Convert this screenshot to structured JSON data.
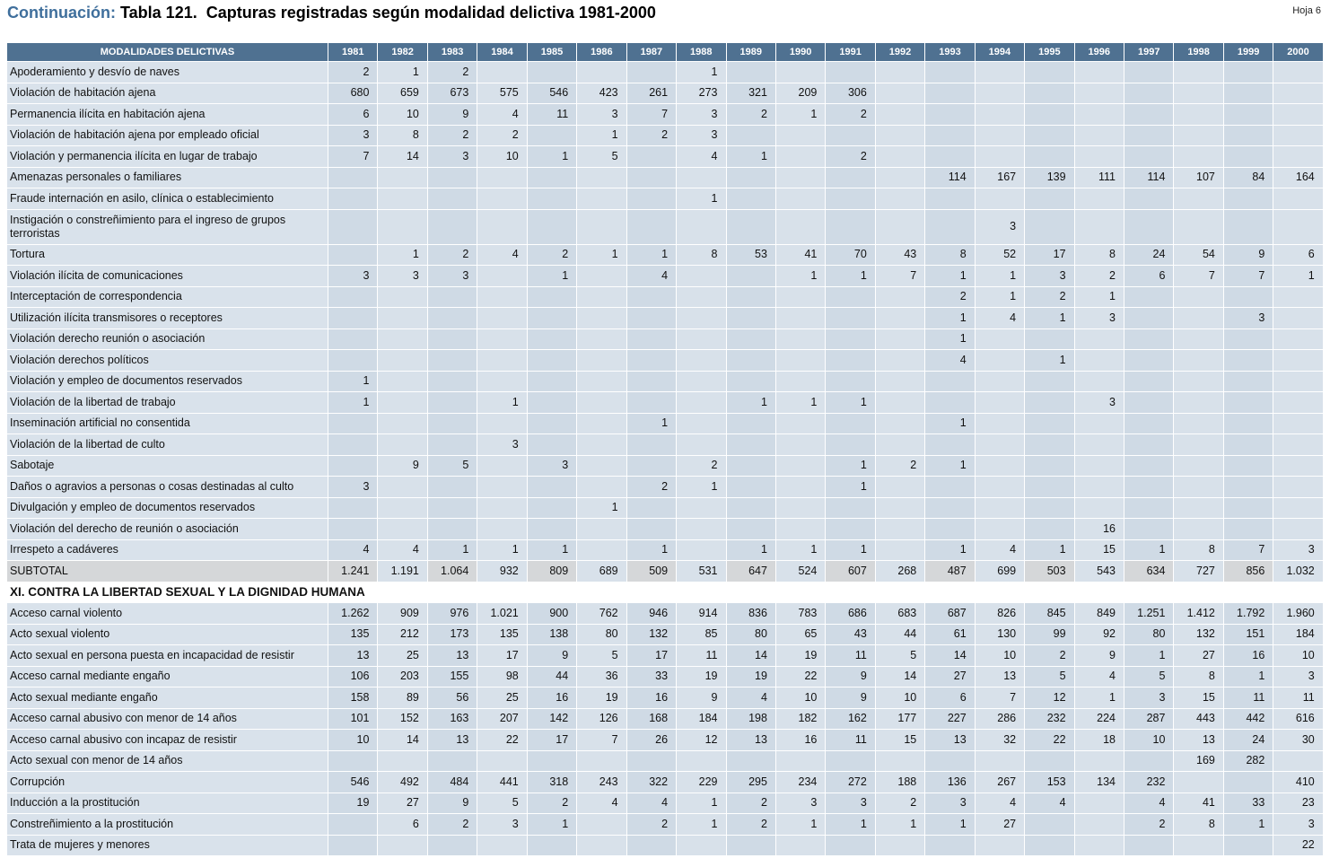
{
  "header": {
    "prefix": "Continuación:",
    "title": "Tabla 121.  Capturas registradas según modalidad delictiva 1981-2000",
    "sheet": "Hoja 6"
  },
  "table": {
    "columns": [
      "MODALIDADES DELICTIVAS",
      "1981",
      "1982",
      "1983",
      "1984",
      "1985",
      "1986",
      "1987",
      "1988",
      "1989",
      "1990",
      "1991",
      "1992",
      "1993",
      "1994",
      "1995",
      "1996",
      "1997",
      "1998",
      "1999",
      "2000"
    ],
    "rows": [
      {
        "label": "Apoderamiento  y  desvío de naves",
        "cells": [
          "2",
          "1",
          "2",
          null,
          null,
          null,
          null,
          "1",
          null,
          null,
          null,
          null,
          null,
          null,
          null,
          null,
          null,
          null,
          null,
          null
        ]
      },
      {
        "label": "Violación de habitación ajena",
        "cells": [
          "680",
          "659",
          "673",
          "575",
          "546",
          "423",
          "261",
          "273",
          "321",
          "209",
          "306",
          null,
          null,
          null,
          null,
          null,
          null,
          null,
          null,
          null
        ]
      },
      {
        "label": "Permanencia  ilícita en habitación ajena",
        "cells": [
          "6",
          "10",
          "9",
          "4",
          "11",
          "3",
          "7",
          "3",
          "2",
          "1",
          "2",
          null,
          null,
          null,
          null,
          null,
          null,
          null,
          null,
          null
        ]
      },
      {
        "label": "Violación  de habitación ajena por empleado oficial",
        "cells": [
          "3",
          "8",
          "2",
          "2",
          null,
          "1",
          "2",
          "3",
          null,
          null,
          null,
          null,
          null,
          null,
          null,
          null,
          null,
          null,
          null,
          null
        ]
      },
      {
        "label": "Violación y permanencia ilícita en lugar de trabajo",
        "cells": [
          "7",
          "14",
          "3",
          "10",
          "1",
          "5",
          null,
          "4",
          "1",
          null,
          "2",
          null,
          null,
          null,
          null,
          null,
          null,
          null,
          null,
          null
        ]
      },
      {
        "label": "Amenazas personales o familiares",
        "cells": [
          null,
          null,
          null,
          null,
          null,
          null,
          null,
          null,
          null,
          null,
          null,
          null,
          "114",
          "167",
          "139",
          "111",
          "114",
          "107",
          "84",
          "164"
        ]
      },
      {
        "label": "Fraude internación en asilo, clínica o establecimiento",
        "cells": [
          null,
          null,
          null,
          null,
          null,
          null,
          null,
          "1",
          null,
          null,
          null,
          null,
          null,
          null,
          null,
          null,
          null,
          null,
          null,
          null
        ]
      },
      {
        "label": "Instigación o  constreñimiento para el  ingreso de  grupos terroristas",
        "cells": [
          null,
          null,
          null,
          null,
          null,
          null,
          null,
          null,
          null,
          null,
          null,
          null,
          null,
          "3",
          null,
          null,
          null,
          null,
          null,
          null
        ]
      },
      {
        "label": "Tortura",
        "cells": [
          null,
          "1",
          "2",
          "4",
          "2",
          "1",
          "1",
          "8",
          "53",
          "41",
          "70",
          "43",
          "8",
          "52",
          "17",
          "8",
          "24",
          "54",
          "9",
          "6"
        ]
      },
      {
        "label": "Violación ilícita de comunicaciones",
        "cells": [
          "3",
          "3",
          "3",
          null,
          "1",
          null,
          "4",
          null,
          null,
          "1",
          "1",
          "7",
          "1",
          "1",
          "3",
          "2",
          "6",
          "7",
          "7",
          "1"
        ]
      },
      {
        "label": "Interceptación de correspondencia",
        "cells": [
          null,
          null,
          null,
          null,
          null,
          null,
          null,
          null,
          null,
          null,
          null,
          null,
          "2",
          "1",
          "2",
          "1",
          null,
          null,
          null,
          null
        ]
      },
      {
        "label": "Utilización ilícita transmisores o receptores",
        "cells": [
          null,
          null,
          null,
          null,
          null,
          null,
          null,
          null,
          null,
          null,
          null,
          null,
          "1",
          "4",
          "1",
          "3",
          null,
          null,
          "3",
          null
        ]
      },
      {
        "label": "Violación derecho reunión o asociación",
        "cells": [
          null,
          null,
          null,
          null,
          null,
          null,
          null,
          null,
          null,
          null,
          null,
          null,
          "1",
          null,
          null,
          null,
          null,
          null,
          null,
          null
        ]
      },
      {
        "label": "Violación derechos políticos",
        "cells": [
          null,
          null,
          null,
          null,
          null,
          null,
          null,
          null,
          null,
          null,
          null,
          null,
          "4",
          null,
          "1",
          null,
          null,
          null,
          null,
          null
        ]
      },
      {
        "label": "Violación y empleo de documentos reservados",
        "cells": [
          "1",
          null,
          null,
          null,
          null,
          null,
          null,
          null,
          null,
          null,
          null,
          null,
          null,
          null,
          null,
          null,
          null,
          null,
          null,
          null
        ]
      },
      {
        "label": "Violación de la libertad de trabajo",
        "cells": [
          "1",
          null,
          null,
          "1",
          null,
          null,
          null,
          null,
          "1",
          "1",
          "1",
          null,
          null,
          null,
          null,
          "3",
          null,
          null,
          null,
          null
        ]
      },
      {
        "label": "Inseminación artificial no consentida",
        "cells": [
          null,
          null,
          null,
          null,
          null,
          null,
          "1",
          null,
          null,
          null,
          null,
          null,
          "1",
          null,
          null,
          null,
          null,
          null,
          null,
          null
        ]
      },
      {
        "label": "Violación de la libertad de culto",
        "cells": [
          null,
          null,
          null,
          "3",
          null,
          null,
          null,
          null,
          null,
          null,
          null,
          null,
          null,
          null,
          null,
          null,
          null,
          null,
          null,
          null
        ]
      },
      {
        "label": "Sabotaje",
        "cells": [
          null,
          "9",
          "5",
          null,
          "3",
          null,
          null,
          "2",
          null,
          null,
          "1",
          "2",
          "1",
          null,
          null,
          null,
          null,
          null,
          null,
          null
        ]
      },
      {
        "label": "Daños o agravios a personas o cosas destinadas al culto",
        "cells": [
          "3",
          null,
          null,
          null,
          null,
          null,
          "2",
          "1",
          null,
          null,
          "1",
          null,
          null,
          null,
          null,
          null,
          null,
          null,
          null,
          null
        ]
      },
      {
        "label": "Divulgación y empleo de documentos reservados",
        "cells": [
          null,
          null,
          null,
          null,
          null,
          "1",
          null,
          null,
          null,
          null,
          null,
          null,
          null,
          null,
          null,
          null,
          null,
          null,
          null,
          null
        ]
      },
      {
        "label": "Violación del derecho de reunión o asociación",
        "cells": [
          null,
          null,
          null,
          null,
          null,
          null,
          null,
          null,
          null,
          null,
          null,
          null,
          null,
          null,
          null,
          "16",
          null,
          null,
          null,
          null
        ]
      },
      {
        "label": "Irrespeto a cadáveres",
        "cells": [
          "4",
          "4",
          "1",
          "1",
          "1",
          null,
          "1",
          null,
          "1",
          "1",
          "1",
          null,
          "1",
          "4",
          "1",
          "15",
          "1",
          "8",
          "7",
          "3"
        ]
      }
    ],
    "subtotal": {
      "label": "SUBTOTAL",
      "cells": [
        "1.241",
        "1.191",
        "1.064",
        "932",
        "809",
        "689",
        "509",
        "531",
        "647",
        "524",
        "607",
        "268",
        "487",
        "699",
        "503",
        "543",
        "634",
        "727",
        "856",
        "1.032"
      ]
    },
    "section": "XI. CONTRA LA LIBERTAD SEXUAL Y LA DIGNIDAD HUMANA",
    "section_rows": [
      {
        "label": "Acceso carnal violento",
        "cells": [
          "1.262",
          "909",
          "976",
          "1.021",
          "900",
          "762",
          "946",
          "914",
          "836",
          "783",
          "686",
          "683",
          "687",
          "826",
          "845",
          "849",
          "1.251",
          "1.412",
          "1.792",
          "1.960"
        ]
      },
      {
        "label": "Acto sexual violento",
        "cells": [
          "135",
          "212",
          "173",
          "135",
          "138",
          "80",
          "132",
          "85",
          "80",
          "65",
          "43",
          "44",
          "61",
          "130",
          "99",
          "92",
          "80",
          "132",
          "151",
          "184"
        ]
      },
      {
        "label": "Acto sexual en persona puesta en incapacidad de resistir",
        "cells": [
          "13",
          "25",
          "13",
          "17",
          "9",
          "5",
          "17",
          "11",
          "14",
          "19",
          "11",
          "5",
          "14",
          "10",
          "2",
          "9",
          "1",
          "27",
          "16",
          "10"
        ]
      },
      {
        "label": "Acceso carnal mediante engaño",
        "cells": [
          "106",
          "203",
          "155",
          "98",
          "44",
          "36",
          "33",
          "19",
          "19",
          "22",
          "9",
          "14",
          "27",
          "13",
          "5",
          "4",
          "5",
          "8",
          "1",
          "3"
        ]
      },
      {
        "label": "Acto sexual mediante engaño",
        "cells": [
          "158",
          "89",
          "56",
          "25",
          "16",
          "19",
          "16",
          "9",
          "4",
          "10",
          "9",
          "10",
          "6",
          "7",
          "12",
          "1",
          "3",
          "15",
          "11",
          "11"
        ]
      },
      {
        "label": "Acceso carnal abusivo con menor de 14 años",
        "cells": [
          "101",
          "152",
          "163",
          "207",
          "142",
          "126",
          "168",
          "184",
          "198",
          "182",
          "162",
          "177",
          "227",
          "286",
          "232",
          "224",
          "287",
          "443",
          "442",
          "616"
        ]
      },
      {
        "label": "Acceso carnal abusivo con incapaz de resistir",
        "cells": [
          "10",
          "14",
          "13",
          "22",
          "17",
          "7",
          "26",
          "12",
          "13",
          "16",
          "11",
          "15",
          "13",
          "32",
          "22",
          "18",
          "10",
          "13",
          "24",
          "30"
        ]
      },
      {
        "label": "Acto sexual con menor de 14 años",
        "cells": [
          null,
          null,
          null,
          null,
          null,
          null,
          null,
          null,
          null,
          null,
          null,
          null,
          null,
          null,
          null,
          null,
          null,
          "169",
          "282",
          null
        ]
      },
      {
        "label": "Corrupción",
        "cells": [
          "546",
          "492",
          "484",
          "441",
          "318",
          "243",
          "322",
          "229",
          "295",
          "234",
          "272",
          "188",
          "136",
          "267",
          "153",
          "134",
          "232",
          null,
          null,
          "410"
        ]
      },
      {
        "label": "Inducción a la prostitución",
        "cells": [
          "19",
          "27",
          "9",
          "5",
          "2",
          "4",
          "4",
          "1",
          "2",
          "3",
          "3",
          "2",
          "3",
          "4",
          "4",
          null,
          "4",
          "41",
          "33",
          "23"
        ]
      },
      {
        "label": "Constreñimiento a la prostitución",
        "cells": [
          null,
          "6",
          "2",
          "3",
          "1",
          null,
          "2",
          "1",
          "2",
          "1",
          "1",
          "1",
          "1",
          "27",
          null,
          null,
          "2",
          "8",
          "1",
          "3"
        ]
      },
      {
        "label": "Trata de  mujeres y menores",
        "cells": [
          null,
          null,
          null,
          null,
          null,
          null,
          null,
          null,
          null,
          null,
          null,
          null,
          null,
          null,
          null,
          null,
          null,
          null,
          null,
          "22"
        ]
      }
    ]
  }
}
